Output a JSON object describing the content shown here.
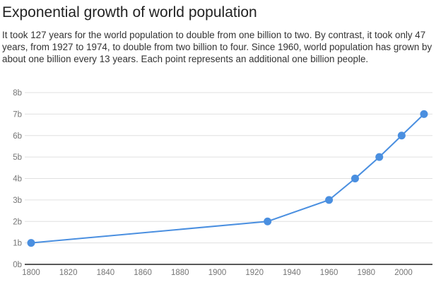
{
  "chart_data": {
    "type": "line",
    "title": "Exponential growth of world population",
    "subtitle": "It took 127 years for the world population to double from one billion to two. By contrast, it took only 47 years, from 1927 to 1974, to double from two billion to four. Since 1960, world population has grown by about one billion every 13 years. Each point represents an additional one billion people.",
    "x": [
      1800,
      1927,
      1960,
      1974,
      1987,
      1999,
      2011
    ],
    "series": [
      {
        "values": [
          1,
          2,
          3,
          4,
          5,
          6,
          7
        ]
      }
    ],
    "xlim": [
      1800,
      2015
    ],
    "ylim": [
      0,
      8
    ],
    "x_ticks": [
      "1800",
      "1820",
      "1840",
      "1860",
      "1880",
      "1900",
      "1920",
      "1940",
      "1960",
      "1980",
      "2000"
    ],
    "y_ticks": [
      "0b",
      "1b",
      "2b",
      "3b",
      "4b",
      "5b",
      "6b",
      "7b",
      "8b"
    ],
    "grid": true,
    "legend": "none",
    "colors": {
      "line": "#4a8fe0",
      "grid": "#e0e0e0",
      "axis": "#222222"
    }
  }
}
